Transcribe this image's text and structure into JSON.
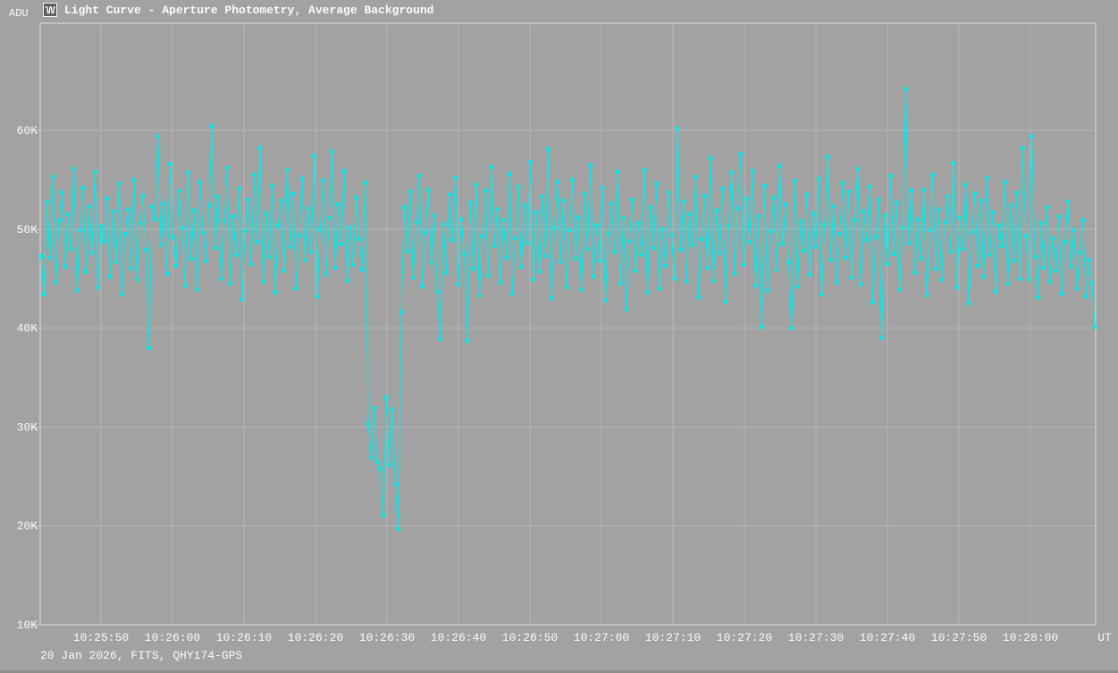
{
  "header": {
    "y_axis_label": "ADU",
    "icon": "light-curve-icon",
    "title": "Light Curve - Aperture Photometry, Average Background"
  },
  "footer": {
    "info": "20 Jan 2026, FITS, QHY174-GPS",
    "x_axis_unit": "UT"
  },
  "colors": {
    "background": "#a2a2a2",
    "grid": "#b7b7b7",
    "axis": "#c9c9c9",
    "curve": "#0ce8e8",
    "text": "#fbfbfb",
    "icon_bg": "#5f5f5f",
    "icon_fg": "#ffffff",
    "window_bottom_edge": "#8d8d8d"
  },
  "chart_data": {
    "type": "line",
    "title": "Light Curve - Aperture Photometry, Average Background",
    "xlabel": "UT",
    "ylabel": "ADU",
    "grid": true,
    "marker": "square",
    "xlim_seconds": [
      -8.5,
      139.125
    ],
    "ylim_k_adu": [
      10,
      70.83
    ],
    "x_tick_seconds": [
      0,
      10,
      20,
      30,
      40,
      50,
      60,
      70,
      80,
      90,
      100,
      110,
      120,
      130
    ],
    "x_tick_labels": [
      "10:25:50",
      "10:26:00",
      "10:26:10",
      "10:26:20",
      "10:26:30",
      "10:26:40",
      "10:26:50",
      "10:27:00",
      "10:27:10",
      "10:27:20",
      "10:27:30",
      "10:27:40",
      "10:27:50",
      "10:28:00"
    ],
    "y_tick_values_k": [
      10,
      20,
      30,
      40,
      50,
      60
    ],
    "y_tick_labels": [
      "10K",
      "20K",
      "30K",
      "40K",
      "50K",
      "60K"
    ],
    "series": [
      {
        "name": "aperture-photometry-average-background",
        "start_offset_seconds": -8.4,
        "cadence_seconds": 0.42,
        "values_k_adu": [
          47.3,
          43.4,
          52.8,
          47.1,
          55.3,
          44.6,
          50.9,
          53.7,
          46.2,
          51.5,
          48.0,
          56.1,
          43.8,
          49.9,
          54.2,
          45.7,
          52.3,
          47.6,
          55.8,
          44.1,
          50.3,
          48.8,
          53.1,
          45.2,
          51.8,
          46.7,
          54.6,
          43.4,
          49.5,
          52.0,
          46.0,
          55.0,
          44.9,
          50.6,
          53.4,
          47.9,
          38.0,
          52.3,
          51.0,
          59.4,
          48.4,
          52.6,
          45.5,
          56.6,
          49.2,
          46.3,
          53.9,
          50.1,
          44.3,
          55.7,
          47.0,
          51.9,
          43.9,
          54.8,
          49.6,
          46.8,
          52.4,
          60.4,
          48.1,
          53.3,
          45.0,
          50.8,
          56.2,
          44.5,
          51.3,
          47.4,
          54.1,
          42.9,
          49.8,
          53.0,
          46.5,
          55.5,
          48.7,
          58.2,
          44.7,
          51.6,
          47.2,
          54.4,
          43.6,
          50.4,
          52.9,
          45.8,
          56.0,
          48.2,
          53.6,
          44.0,
          49.4,
          55.1,
          46.9,
          52.1,
          47.7,
          57.4,
          43.2,
          50.0,
          54.9,
          45.4,
          51.1,
          57.9,
          46.1,
          52.5,
          48.5,
          55.9,
          44.8,
          50.2,
          46.4,
          53.2,
          49.0,
          45.9,
          54.7,
          30.3,
          26.9,
          31.9,
          26.5,
          25.8,
          21.1,
          33.0,
          26.2,
          31.8,
          24.2,
          19.7,
          41.6,
          52.2,
          47.8,
          53.8,
          45.1,
          50.7,
          55.4,
          44.2,
          49.7,
          54.0,
          46.6,
          51.4,
          43.7,
          38.9,
          50.5,
          45.6,
          53.5,
          48.9,
          55.2,
          44.4,
          51.0,
          47.5,
          38.7,
          52.7,
          46.0,
          54.5,
          43.3,
          49.3,
          53.9,
          45.3,
          56.3,
          48.3,
          52.0,
          44.6,
          50.9,
          47.1,
          55.6,
          43.5,
          49.1,
          54.3,
          46.2,
          52.4,
          48.6,
          56.8,
          44.9,
          51.7,
          45.7,
          53.3,
          47.3,
          58.1,
          43.0,
          50.1,
          54.8,
          46.7,
          52.9,
          44.1,
          49.9,
          55.0,
          47.0,
          51.2,
          43.9,
          53.6,
          48.0,
          56.5,
          45.2,
          50.4,
          46.8,
          54.2,
          42.8,
          49.6,
          52.6,
          47.7,
          55.8,
          44.5,
          51.1,
          41.9,
          48.8,
          53.0,
          45.8,
          50.6,
          47.4,
          56.0,
          43.6,
          52.2,
          48.1,
          54.6,
          44.0,
          50.0,
          46.3,
          53.7,
          49.4,
          45.0,
          60.2,
          47.9,
          52.8,
          44.7,
          51.5,
          48.4,
          55.3,
          43.1,
          49.0,
          53.4,
          46.1,
          57.2,
          44.8,
          51.9,
          47.6,
          54.1,
          42.7,
          50.3,
          55.7,
          45.5,
          52.1,
          57.6,
          46.4,
          53.1,
          48.7,
          55.9,
          44.3,
          51.3,
          40.1,
          54.4,
          43.8,
          49.8,
          53.2,
          45.9,
          56.4,
          48.5,
          52.5,
          46.6,
          40.0,
          54.9,
          44.2,
          50.8,
          47.8,
          53.5,
          45.4,
          51.6,
          48.2,
          55.1,
          43.4,
          50.5,
          57.3,
          46.9,
          52.3,
          44.6,
          49.5,
          54.7,
          47.1,
          53.8,
          45.1,
          50.9,
          56.1,
          44.4,
          51.8,
          48.9,
          54.3,
          42.6,
          49.2,
          53.0,
          39.0,
          51.4,
          46.5,
          55.4,
          47.5,
          52.7,
          43.9,
          50.2,
          64.2,
          48.6,
          53.9,
          45.6,
          51.0,
          47.0,
          54.0,
          43.3,
          49.9,
          55.5,
          46.0,
          52.0,
          44.9,
          50.7,
          53.3,
          47.7,
          56.7,
          44.1,
          51.2,
          48.0,
          54.5,
          42.5,
          49.7,
          53.6,
          46.3,
          52.9,
          45.2,
          55.2,
          47.4,
          51.7,
          43.7,
          50.4,
          48.3,
          54.8,
          44.5,
          52.4,
          46.8,
          53.7,
          45.0,
          58.2,
          49.3,
          44.9,
          59.4,
          47.2,
          43.1,
          50.6,
          46.1,
          52.2,
          44.7,
          49.1,
          45.8,
          51.3,
          43.5,
          48.7,
          52.8,
          46.2,
          49.9,
          44.0,
          47.6,
          50.9,
          43.2,
          46.9,
          44.6,
          40.1
        ]
      }
    ]
  }
}
